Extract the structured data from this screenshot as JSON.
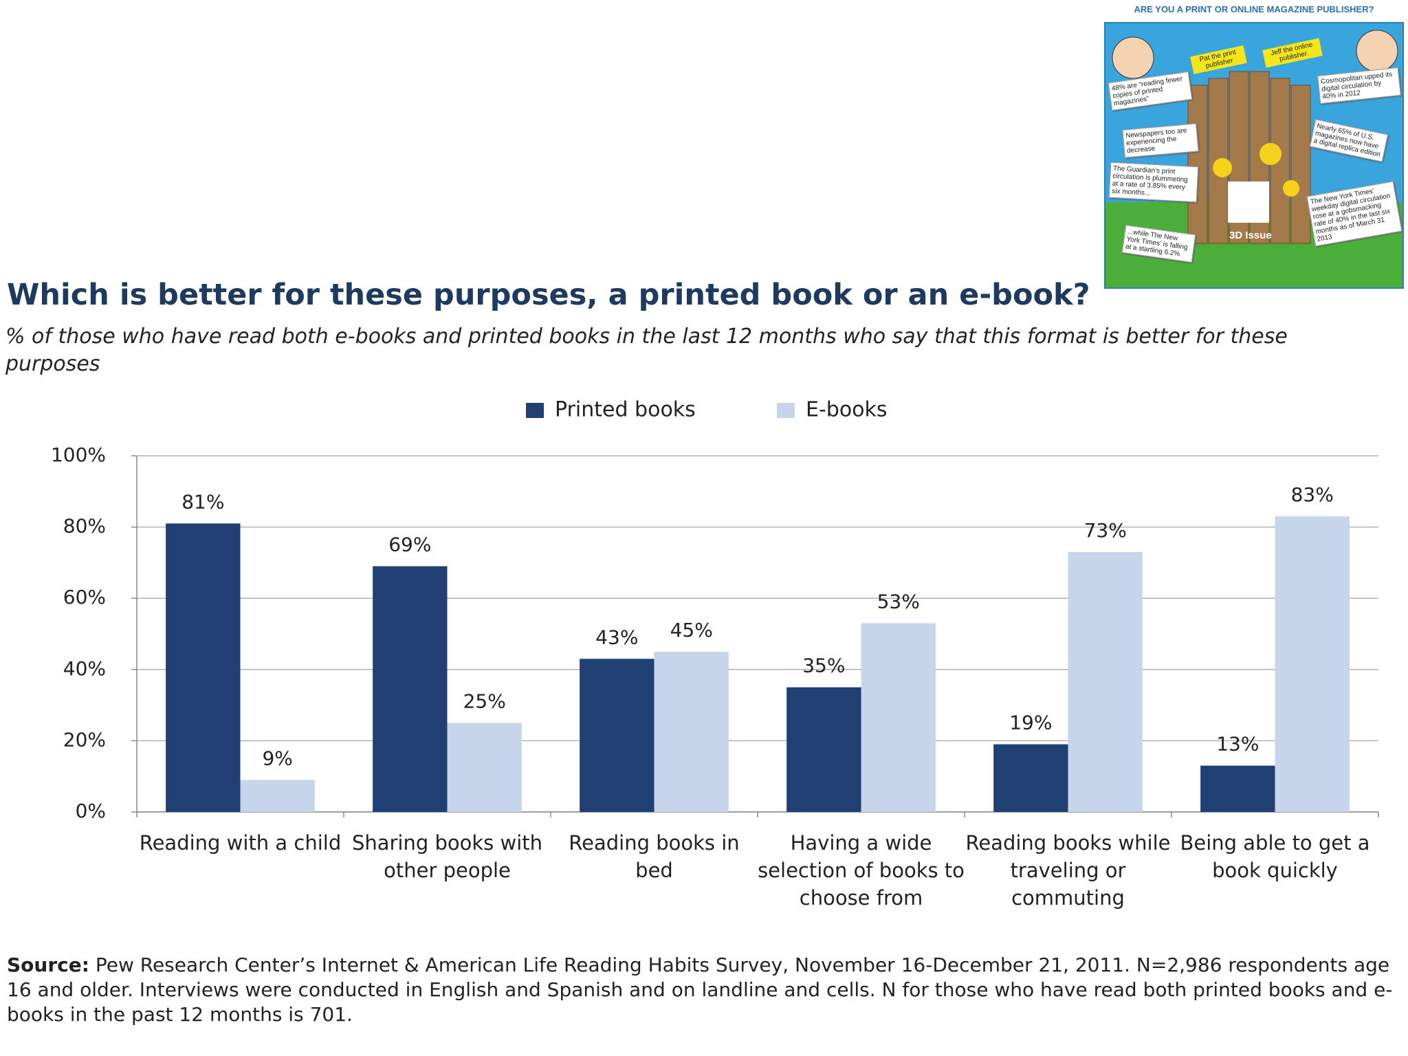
{
  "chart_data": {
    "type": "bar",
    "title": "Which is better for these purposes, a printed book or an e-book?",
    "subtitle": "% of those who have read both e-books and printed books in the last 12 months who say that this format is better for these purposes",
    "categories": [
      "Reading with a child",
      "Sharing books with other people",
      "Reading books in bed",
      "Having a wide selection of books to choose from",
      "Reading books while traveling or commuting",
      "Being able to get a book quickly"
    ],
    "series": [
      {
        "name": "Printed books",
        "color": "#203f73",
        "values": [
          81,
          69,
          43,
          35,
          19,
          13
        ],
        "value_labels": [
          "81%",
          "69%",
          "43%",
          "35%",
          "19%",
          "13%"
        ]
      },
      {
        "name": "E-books",
        "color": "#c6d5ea",
        "values": [
          9,
          25,
          45,
          53,
          73,
          83
        ],
        "value_labels": [
          "9%",
          "25%",
          "45%",
          "53%",
          "73%",
          "83%"
        ]
      }
    ],
    "ylim": [
      0,
      100
    ],
    "yticks": [
      {
        "value": 0,
        "label": "0%"
      },
      {
        "value": 20,
        "label": "20%"
      },
      {
        "value": 40,
        "label": "40%"
      },
      {
        "value": 60,
        "label": "60%"
      },
      {
        "value": 80,
        "label": "80%"
      },
      {
        "value": 100,
        "label": "100%"
      }
    ],
    "grid": true,
    "legend": "top",
    "source_label": "Source:",
    "source": "Pew Research Center’s Internet & American Life Reading Habits Survey, November 16-December 21, 2011. N=2,986 respondents age 16 and older. Interviews were conducted in English and Spanish and on landline and cells. N for those who have read both printed books and e-books in the past 12 months is 701."
  },
  "inset": {
    "title": "ARE YOU A PRINT OR ONLINE MAGAZINE PUBLISHER?",
    "signs": [
      "Pat the print publisher",
      "Jeff the online publisher"
    ],
    "left_notes": [
      "48% are “reading fewer copies of printed magazines”",
      "Newspapers too are experiencing the decrease",
      "The Guardian’s print circulation is plummeting at a rate of 3.85% every six months...",
      "...while The New York Times’ is falling at a startling 6.2%"
    ],
    "right_notes": [
      "Cosmopolitan upped its digital circulation by 40% in 2012",
      "Nearly 65% of U.S. magazines now have a digital replica edition",
      "The New York Times’ weekday digital circulation rose at a gobsmacking rate of 40% in the last six months as of March 31 2013"
    ],
    "brand": "3D Issue"
  }
}
